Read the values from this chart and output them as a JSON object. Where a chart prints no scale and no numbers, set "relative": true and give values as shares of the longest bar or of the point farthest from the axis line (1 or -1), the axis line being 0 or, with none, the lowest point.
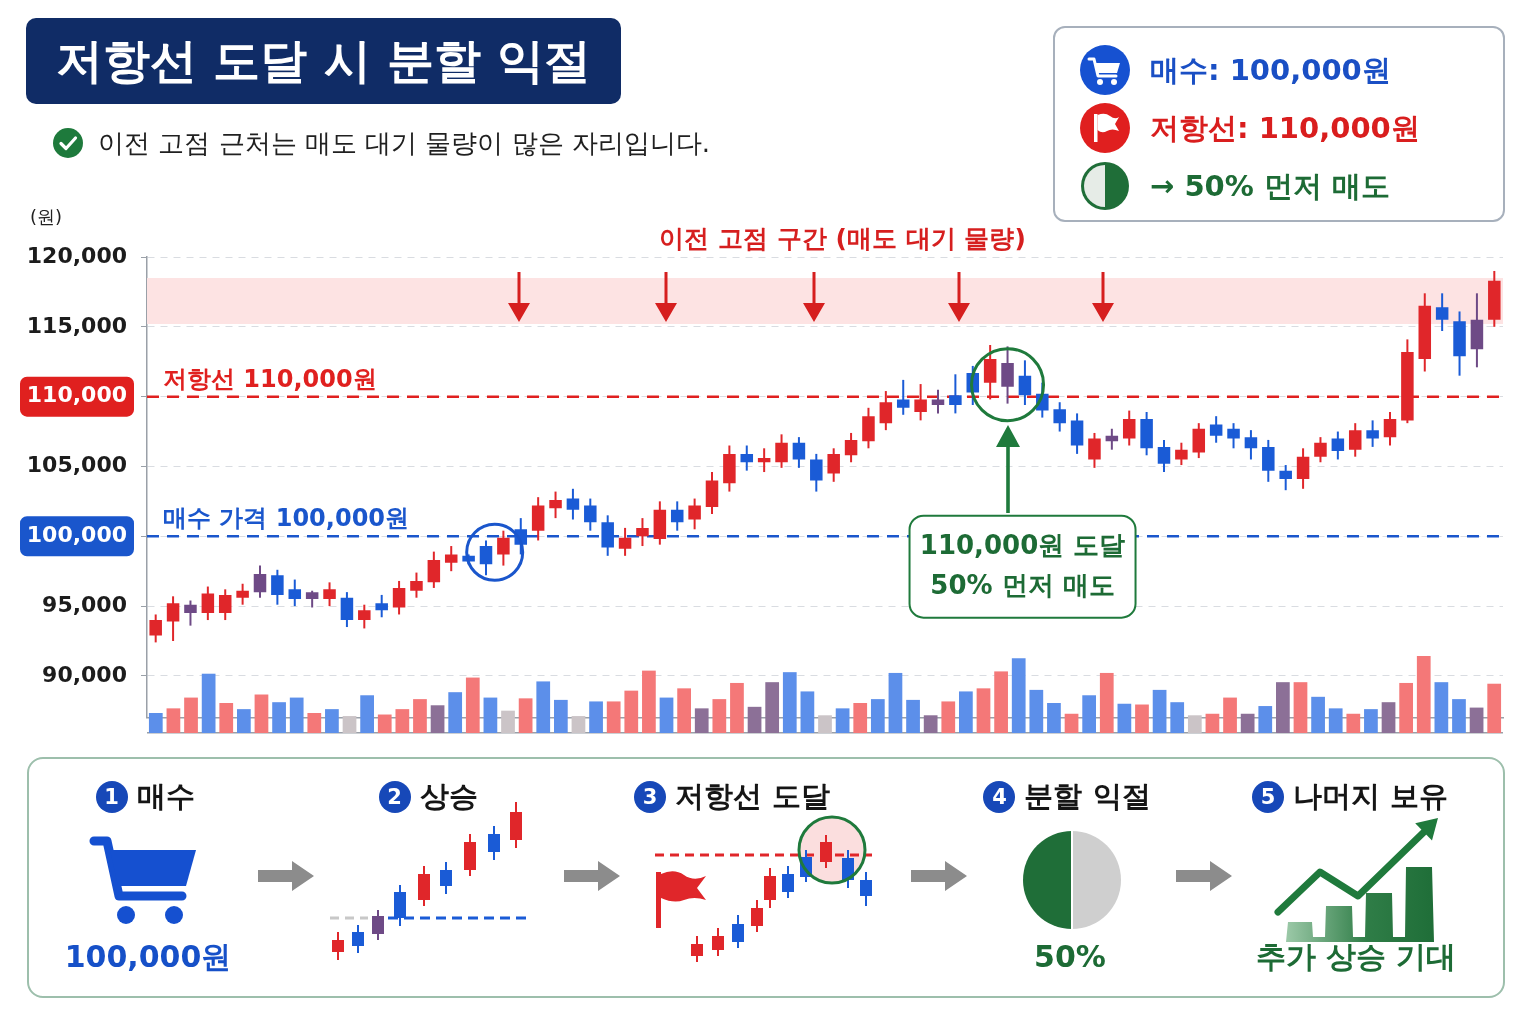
{
  "chart_data": [
    {
      "type": "candlestick",
      "title": "저항선 도달 시 분할 익절",
      "subtitle": "이전 고점 근처는 매도 대기 물량이 많은 자리입니다.",
      "ylabel": "(원)",
      "categories": [
        null,
        null,
        null,
        null,
        null,
        null,
        null,
        null,
        null,
        null,
        null,
        null,
        null,
        null,
        null,
        null,
        null,
        null,
        null,
        null,
        null,
        null,
        null,
        null,
        null,
        null,
        null,
        null,
        null,
        null,
        null,
        null,
        null,
        null,
        null,
        null,
        null,
        null,
        null,
        null,
        null,
        null,
        null,
        null,
        null,
        null,
        null,
        null,
        null,
        null,
        null,
        null,
        null,
        null,
        null,
        null,
        null,
        null,
        null,
        null,
        null,
        null,
        null,
        null,
        null,
        null,
        null,
        null,
        null,
        null,
        null,
        null,
        null,
        null,
        null,
        null,
        null,
        null
      ],
      "ohlc": [
        [
          92900,
          94400,
          92400,
          94000
        ],
        [
          93900,
          95700,
          92500,
          95200
        ],
        [
          95100,
          95400,
          93600,
          94500
        ],
        [
          94500,
          96400,
          94000,
          95900
        ],
        [
          94500,
          96200,
          94000,
          95800
        ],
        [
          95600,
          96600,
          95100,
          96100
        ],
        [
          96000,
          97900,
          95600,
          97300
        ],
        [
          97200,
          97600,
          95100,
          95800
        ],
        [
          96200,
          96900,
          95000,
          95500
        ],
        [
          96000,
          96100,
          94900,
          95500
        ],
        [
          95500,
          96700,
          95000,
          96200
        ],
        [
          95600,
          96000,
          93500,
          94000
        ],
        [
          94000,
          95100,
          93400,
          94700
        ],
        [
          95200,
          95800,
          94200,
          94700
        ],
        [
          94900,
          96800,
          94400,
          96300
        ],
        [
          96100,
          97400,
          95600,
          96800
        ],
        [
          96700,
          98900,
          96300,
          98300
        ],
        [
          98100,
          99300,
          97500,
          98700
        ],
        [
          98600,
          98700,
          98000,
          98200
        ],
        [
          99300,
          99700,
          97200,
          98000
        ],
        [
          98700,
          100400,
          97900,
          99900
        ],
        [
          100500,
          101300,
          98700,
          99400
        ],
        [
          100400,
          102800,
          99700,
          102200
        ],
        [
          102000,
          103200,
          101300,
          102600
        ],
        [
          102700,
          103400,
          101200,
          101900
        ],
        [
          102200,
          102700,
          100400,
          101000
        ],
        [
          101000,
          101500,
          98600,
          99200
        ],
        [
          99100,
          100600,
          98600,
          99900
        ],
        [
          100000,
          101300,
          99300,
          100600
        ],
        [
          99800,
          102500,
          99400,
          101900
        ],
        [
          101900,
          102500,
          100400,
          101000
        ],
        [
          101200,
          102700,
          100500,
          102200
        ],
        [
          102100,
          104600,
          101600,
          104000
        ],
        [
          103800,
          106500,
          103200,
          105900
        ],
        [
          105900,
          106500,
          104700,
          105300
        ],
        [
          105300,
          106300,
          104600,
          105600
        ],
        [
          105300,
          107300,
          104900,
          106700
        ],
        [
          106700,
          107100,
          104900,
          105500
        ],
        [
          105500,
          105900,
          103200,
          104000
        ],
        [
          104500,
          106300,
          103900,
          105900
        ],
        [
          105800,
          107400,
          105300,
          106900
        ],
        [
          106800,
          109200,
          106300,
          108600
        ],
        [
          108100,
          110400,
          107600,
          109600
        ],
        [
          109800,
          111200,
          108700,
          109200
        ],
        [
          108900,
          110900,
          108300,
          109800
        ],
        [
          109400,
          110500,
          108800,
          109800
        ],
        [
          110100,
          111600,
          108800,
          109400
        ],
        [
          111700,
          112200,
          109400,
          110300
        ],
        [
          111000,
          113700,
          109800,
          112700
        ],
        [
          112400,
          113600,
          109500,
          110700
        ],
        [
          111500,
          112600,
          109400,
          110100
        ],
        [
          110200,
          111000,
          108500,
          109000
        ],
        [
          109100,
          109600,
          107500,
          108100
        ],
        [
          108300,
          108800,
          105900,
          106500
        ],
        [
          105500,
          107400,
          104900,
          107000
        ],
        [
          106800,
          107700,
          106200,
          107200
        ],
        [
          107000,
          109000,
          106500,
          108400
        ],
        [
          108400,
          108900,
          105800,
          106300
        ],
        [
          106400,
          106900,
          104600,
          105200
        ],
        [
          105500,
          106700,
          105100,
          106200
        ],
        [
          106000,
          108100,
          105600,
          107700
        ],
        [
          108000,
          108600,
          106700,
          107200
        ],
        [
          107700,
          108100,
          106300,
          107000
        ],
        [
          107100,
          107600,
          105500,
          106300
        ],
        [
          106400,
          106900,
          103900,
          104700
        ],
        [
          104700,
          105100,
          103300,
          104100
        ],
        [
          104100,
          106300,
          103400,
          105700
        ],
        [
          105700,
          107100,
          105300,
          106700
        ],
        [
          107000,
          107500,
          105500,
          106100
        ],
        [
          106200,
          108100,
          105700,
          107600
        ],
        [
          107600,
          108300,
          106400,
          107000
        ],
        [
          107100,
          108900,
          106500,
          108400
        ],
        [
          108300,
          114100,
          108100,
          113200
        ],
        [
          112700,
          117400,
          111800,
          116500
        ],
        [
          116400,
          117400,
          114700,
          115500
        ],
        [
          115400,
          116100,
          111500,
          112900
        ],
        [
          113400,
          117400,
          112100,
          115500
        ],
        [
          115500,
          119000,
          115000,
          118300
        ]
      ],
      "colors": [
        "#e0262a",
        "#e0262a",
        "#6e4a86",
        "#e0262a",
        "#e0262a",
        "#e0262a",
        "#6e4a86",
        "#1a5bd6",
        "#1a5bd6",
        "#6e4a86",
        "#e0262a",
        "#1a5bd6",
        "#e0262a",
        "#1a5bd6",
        "#e0262a",
        "#e0262a",
        "#e0262a",
        "#e0262a",
        "#1a5bd6",
        "#1a5bd6",
        "#e0262a",
        "#1a5bd6",
        "#e0262a",
        "#e0262a",
        "#1a5bd6",
        "#1a5bd6",
        "#1a5bd6",
        "#e0262a",
        "#e0262a",
        "#e0262a",
        "#1a5bd6",
        "#e0262a",
        "#e0262a",
        "#e0262a",
        "#1a5bd6",
        "#e0262a",
        "#e0262a",
        "#1a5bd6",
        "#1a5bd6",
        "#e0262a",
        "#e0262a",
        "#e0262a",
        "#e0262a",
        "#1a5bd6",
        "#e0262a",
        "#6e4a86",
        "#1a5bd6",
        "#1a5bd6",
        "#e0262a",
        "#6e4a86",
        "#1a5bd6",
        "#1a5bd6",
        "#1a5bd6",
        "#1a5bd6",
        "#e0262a",
        "#6e4a86",
        "#e0262a",
        "#1a5bd6",
        "#1a5bd6",
        "#e0262a",
        "#e0262a",
        "#1a5bd6",
        "#1a5bd6",
        "#1a5bd6",
        "#1a5bd6",
        "#1a5bd6",
        "#e0262a",
        "#e0262a",
        "#1a5bd6",
        "#e0262a",
        "#1a5bd6",
        "#e0262a",
        "#e0262a",
        "#e0262a",
        "#1a5bd6",
        "#1a5bd6",
        "#6e4a86",
        "#e0262a"
      ],
      "ylim": [
        87000,
        120000
      ],
      "yticks": [
        {
          "value": 90000,
          "label": "90,000"
        },
        {
          "value": 95000,
          "label": "95,000"
        },
        {
          "value": 100000,
          "label": "100,000"
        },
        {
          "value": 105000,
          "label": "105,000"
        },
        {
          "value": 110000,
          "label": "110,000"
        },
        {
          "value": 115000,
          "label": "115,000"
        },
        {
          "value": 120000,
          "label": "120,000"
        }
      ],
      "ref_lines": [
        {
          "axis": "y",
          "value": 110000,
          "label": "저항선 110,000원",
          "color": "#e0201f",
          "line_style": "dashed"
        },
        {
          "axis": "y",
          "value": 100000,
          "label": "매수 가격 100,000원",
          "color": "#1a56cc",
          "line_style": "dashed"
        }
      ],
      "bands": [
        {
          "axis": "y",
          "from": 115200,
          "to": 118500,
          "label": "이전 고점 구간 (매도 대기 물량)",
          "color": "#fde3e3"
        }
      ],
      "annotations": [
        "110,000원 도달\n50% 먼저 매도",
        "매수: 100,000원",
        "저항선: 110,000원",
        "→ 50% 먼저 매도"
      ],
      "grid": "y",
      "legend": false,
      "tick_labels": "y"
    },
    {
      "type": "bar",
      "categories": [
        null,
        null,
        null,
        null,
        null,
        null,
        null,
        null,
        null,
        null,
        null,
        null,
        null,
        null,
        null,
        null,
        null,
        null,
        null,
        null,
        null,
        null,
        null,
        null,
        null,
        null,
        null,
        null,
        null,
        null,
        null,
        null,
        null,
        null,
        null,
        null,
        null,
        null,
        null,
        null,
        null,
        null,
        null,
        null,
        null,
        null,
        null,
        null,
        null,
        null,
        null,
        null,
        null,
        null,
        null,
        null,
        null,
        null,
        null,
        null,
        null,
        null,
        null,
        null,
        null,
        null,
        null,
        null,
        null,
        null,
        null,
        null,
        null,
        null,
        null,
        null,
        null
      ],
      "values": [
        0.26,
        0.32,
        0.46,
        0.77,
        0.39,
        0.31,
        0.5,
        0.4,
        0.46,
        0.26,
        0.31,
        0.22,
        0.49,
        0.24,
        0.31,
        0.44,
        0.36,
        0.53,
        0.72,
        0.46,
        0.29,
        0.45,
        0.67,
        0.43,
        0.22,
        0.41,
        0.41,
        0.55,
        0.81,
        0.46,
        0.58,
        0.32,
        0.44,
        0.65,
        0.34,
        0.66,
        0.79,
        0.54,
        0.23,
        0.32,
        0.39,
        0.44,
        0.78,
        0.43,
        0.23,
        0.41,
        0.54,
        0.58,
        0.8,
        0.97,
        0.56,
        0.39,
        0.25,
        0.49,
        0.78,
        0.38,
        0.37,
        0.56,
        0.4,
        0.23,
        0.25,
        0.46,
        0.25,
        0.35,
        0.66,
        0.66,
        0.47,
        0.32,
        0.25,
        0.31,
        0.4,
        0.65,
        1,
        0.66,
        0.44,
        0.33,
        0.64
      ],
      "colors": [
        "#5c8fea",
        "#f47878",
        "#f47878",
        "#5c8fea",
        "#f47878",
        "#5c8fea",
        "#f47878",
        "#5c8fea",
        "#5c8fea",
        "#f47878",
        "#5c8fea",
        "#cbc4c7",
        "#5c8fea",
        "#f47878",
        "#f47878",
        "#f47878",
        "#8c7097",
        "#5c8fea",
        "#f47878",
        "#5c8fea",
        "#cbc4c7",
        "#f47878",
        "#5c8fea",
        "#5c8fea",
        "#cbc4c7",
        "#5c8fea",
        "#f47878",
        "#f47878",
        "#f47878",
        "#5c8fea",
        "#f47878",
        "#8c7097",
        "#f47878",
        "#f47878",
        "#8c7097",
        "#8c7097",
        "#5c8fea",
        "#5c8fea",
        "#cbc4c7",
        "#5c8fea",
        "#f47878",
        "#5c8fea",
        "#5c8fea",
        "#5c8fea",
        "#8c7097",
        "#f47878",
        "#5c8fea",
        "#f47878",
        "#f47878",
        "#5c8fea",
        "#5c8fea",
        "#5c8fea",
        "#f47878",
        "#5c8fea",
        "#f47878",
        "#5c8fea",
        "#f47878",
        "#5c8fea",
        "#5c8fea",
        "#cbc4c7",
        "#f47878",
        "#f47878",
        "#8c7097",
        "#5c8fea",
        "#8c7097",
        "#f47878",
        "#5c8fea",
        "#5c8fea",
        "#f47878",
        "#5c8fea",
        "#8c7097",
        "#f47878",
        "#f47878",
        "#5c8fea",
        "#5c8fea",
        "#8c7097",
        "#f47878"
      ],
      "relative": true,
      "tick_labels": false
    },
    {
      "type": "other",
      "categories": [
        "매수",
        "상승",
        "저항선 도달",
        "분할 익절",
        "나머지 보유"
      ],
      "annotations": [
        "1",
        "2",
        "3",
        "4",
        "5",
        "100,000원",
        "50%",
        "추가 상승 기대"
      ]
    }
  ]
}
